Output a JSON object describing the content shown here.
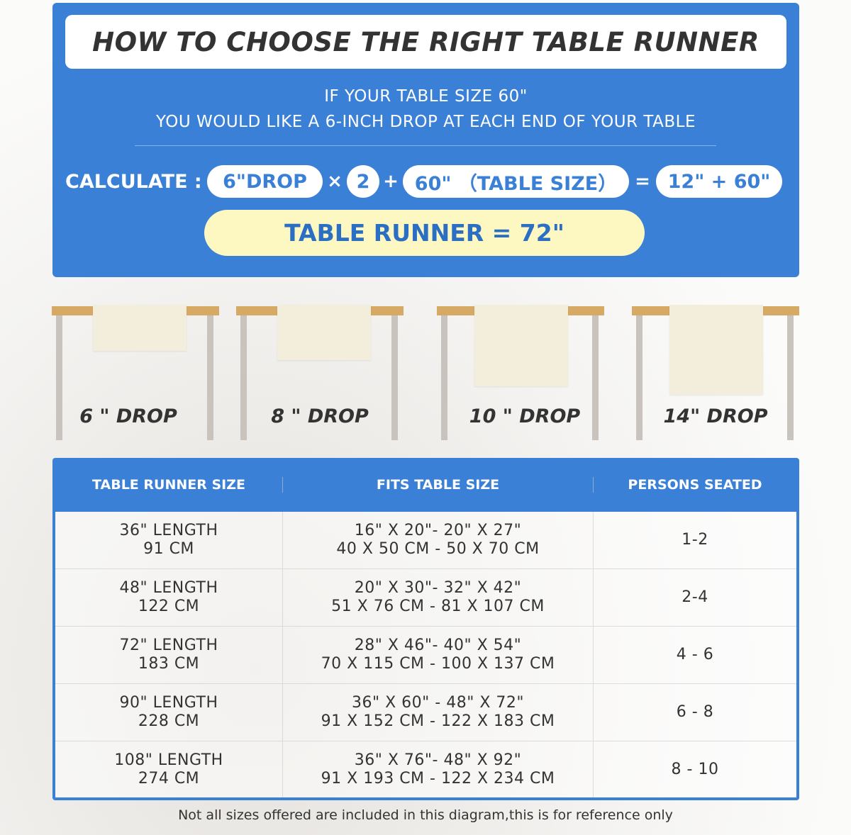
{
  "title": "HOW TO CHOOSE THE RIGHT TABLE RUNNER",
  "intro": [
    "IF YOUR TABLE SIZE 60\"",
    "YOU WOULD LIKE A 6-INCH DROP AT EACH END OF YOUR TABLE"
  ],
  "calc": {
    "label": "CALCULATE :",
    "drop": "6\"DROP",
    "times": "×",
    "two": "2",
    "plus": "+",
    "table": "60\" （TABLE SIZE）",
    "equals": "=",
    "sum": "12\" + 60\""
  },
  "result": "TABLE RUNNER = 72\"",
  "drops": [
    "6 \" DROP",
    "8 \" DROP",
    "10 \" DROP",
    "14\" DROP"
  ],
  "colors": {
    "accent": "#3a80d6",
    "highlight": "#fdf8c2",
    "tabletop": "#d6a964",
    "runner": "#f2eedb"
  },
  "table": {
    "headers": [
      "TABLE RUNNER SIZE",
      "FITS TABLE SIZE",
      "PERSONS SEATED"
    ],
    "rows": [
      {
        "size": [
          "36\" LENGTH",
          "91 CM"
        ],
        "fits": [
          "16\" X 20\"- 20\" X 27\"",
          "40 X 50 CM - 50 X 70 CM"
        ],
        "persons": "1-2"
      },
      {
        "size": [
          "48\" LENGTH",
          "122 CM"
        ],
        "fits": [
          "20\" X 30\"- 32\" X 42\"",
          "51 X 76 CM - 81 X 107 CM"
        ],
        "persons": "2-4"
      },
      {
        "size": [
          "72\" LENGTH",
          "183 CM"
        ],
        "fits": [
          "28\" X 46\"- 40\" X 54\"",
          "70 X 115 CM - 100 X 137 CM"
        ],
        "persons": "4 - 6"
      },
      {
        "size": [
          "90\" LENGTH",
          "228 CM"
        ],
        "fits": [
          "36\" X 60\" - 48\" X 72\"",
          "91 X 152 CM - 122 X 183 CM"
        ],
        "persons": "6 - 8"
      },
      {
        "size": [
          "108\" LENGTH",
          "274 CM"
        ],
        "fits": [
          "36\" X 76\"- 48\" X 92\"",
          "91 X 193 CM - 122 X 234 CM"
        ],
        "persons": "8 - 10"
      }
    ]
  },
  "footer": "Not all sizes offered are included in this diagram,this is for reference only"
}
